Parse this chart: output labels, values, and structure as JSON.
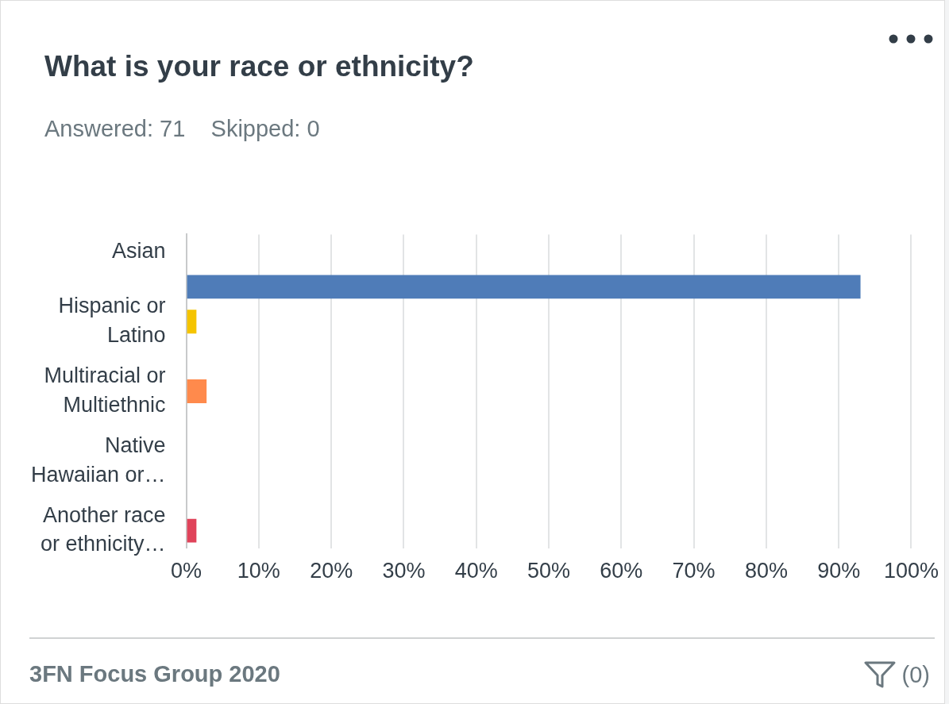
{
  "chart_data": {
    "type": "bar",
    "orientation": "horizontal",
    "title": "What is your race or ethnicity?",
    "subtitle": "Answered: 71    Skipped: 0",
    "categories": [
      "Asian",
      null,
      "Hispanic or Latino",
      null,
      "Multiracial or Multiethnic",
      null,
      "Native Hawaiian or…",
      null,
      "Another race or ethnicity…"
    ],
    "values": [
      0,
      93,
      1.4,
      0,
      2.8,
      0,
      0,
      0,
      1.4
    ],
    "colors": [
      "#4f7cb8",
      "#4f7cb8",
      "#f5c400",
      "#ff8a4c",
      "#ff8a4c",
      "#4f7cb8",
      "#4f7cb8",
      "#4f7cb8",
      "#e0435a"
    ],
    "xlim": [
      0,
      100
    ],
    "xticks": [
      {
        "value": 0,
        "label": "0%"
      },
      {
        "value": 10,
        "label": "10%"
      },
      {
        "value": 20,
        "label": "20%"
      },
      {
        "value": 30,
        "label": "30%"
      },
      {
        "value": 40,
        "label": "40%"
      },
      {
        "value": 50,
        "label": "50%"
      },
      {
        "value": 60,
        "label": "60%"
      },
      {
        "value": 70,
        "label": "70%"
      },
      {
        "value": 80,
        "label": "80%"
      },
      {
        "value": 90,
        "label": "90%"
      },
      {
        "value": 100,
        "label": "100%"
      }
    ],
    "grid": "x",
    "legend": false,
    "annotations": [
      "3FN Focus Group 2020",
      "(0)"
    ]
  }
}
